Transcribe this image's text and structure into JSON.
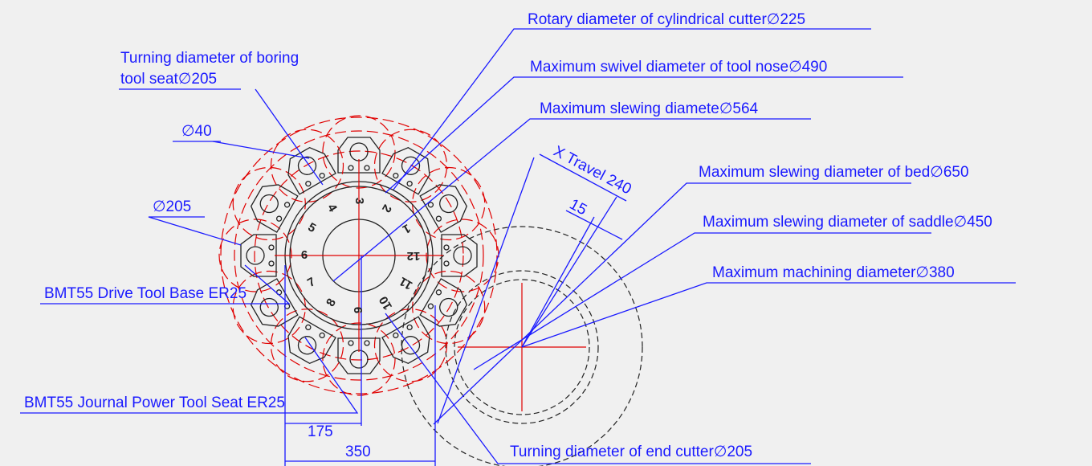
{
  "labels": {
    "rotary_cylindrical_cutter": "Rotary diameter of cylindrical cutter∅225",
    "boring_tool_seat_line1": "Turning diameter of boring",
    "boring_tool_seat_line2": "tool seat∅205",
    "swivel_tool_nose": "Maximum swivel diameter of tool nose∅490",
    "slewing_diameter": "Maximum slewing diamete∅564",
    "bore_40": "∅40",
    "x_travel": "X Travel 240",
    "offset_15": "15",
    "slewing_bed": "Maximum slewing diameter of bed∅650",
    "slewing_saddle": "Maximum slewing diameter of saddle∅450",
    "drive_205": "∅205",
    "machining_diameter": "Maximum machining diameter∅380",
    "bmt_drive": "BMT55 Drive Tool Base ER25",
    "bmt_journal": "BMT55 Journal Power Tool Seat ER25",
    "dim_175": "175",
    "dim_350": "350",
    "end_cutter": "Turning diameter of end cutter∅205"
  },
  "turret_numbers": [
    "1",
    "2",
    "3",
    "4",
    "5",
    "6",
    "7",
    "8",
    "9",
    "10",
    "11",
    "12"
  ]
}
